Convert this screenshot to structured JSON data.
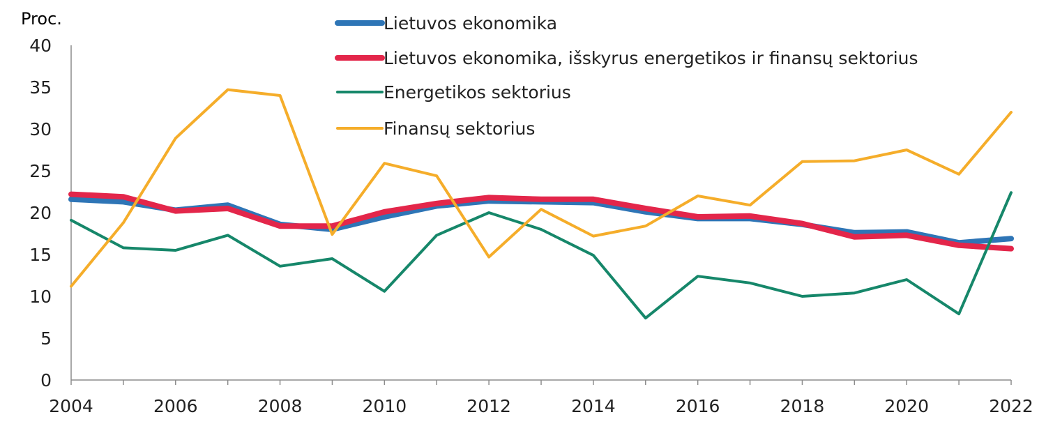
{
  "chart_data": {
    "type": "line",
    "y_unit_label": "Proc.",
    "ylim": [
      0,
      40
    ],
    "y_ticks": [
      0,
      5,
      10,
      15,
      20,
      25,
      30,
      35,
      40
    ],
    "x_ticks": [
      2004,
      2006,
      2008,
      2010,
      2012,
      2014,
      2016,
      2018,
      2020,
      2022
    ],
    "x": [
      2004,
      2005,
      2006,
      2007,
      2008,
      2009,
      2010,
      2011,
      2012,
      2013,
      2014,
      2015,
      2016,
      2017,
      2018,
      2019,
      2020,
      2021,
      2022
    ],
    "grid": false,
    "legend_position": "top-center",
    "series": [
      {
        "name": "Lietuvos ekonomika",
        "color": "#2e75b6",
        "values": [
          21.6,
          21.3,
          20.3,
          20.9,
          18.6,
          18.0,
          19.5,
          20.8,
          21.4,
          21.3,
          21.2,
          20.1,
          19.3,
          19.3,
          18.6,
          17.6,
          17.7,
          16.4,
          16.9
        ]
      },
      {
        "name": "Lietuvos ekonomika, išskyrus energetikos ir finansų sektorius",
        "color": "#e3264a",
        "values": [
          22.2,
          21.9,
          20.2,
          20.5,
          18.4,
          18.4,
          20.1,
          21.1,
          21.8,
          21.6,
          21.6,
          20.5,
          19.5,
          19.6,
          18.7,
          17.1,
          17.3,
          16.1,
          15.7
        ]
      },
      {
        "name": "Energetikos sektorius",
        "color": "#16876a",
        "values": [
          19.1,
          15.8,
          15.5,
          17.3,
          13.6,
          14.5,
          10.6,
          17.3,
          20.0,
          18.0,
          14.9,
          7.4,
          12.4,
          11.6,
          10.0,
          10.4,
          12.0,
          7.9,
          22.4
        ]
      },
      {
        "name": "Finansų sektorius",
        "color": "#f5ad2a",
        "values": [
          11.2,
          18.8,
          28.9,
          34.7,
          34.0,
          17.4,
          25.9,
          24.4,
          14.7,
          20.4,
          17.2,
          18.4,
          22.0,
          20.9,
          26.1,
          26.2,
          27.5,
          24.6,
          32.0
        ]
      }
    ]
  }
}
